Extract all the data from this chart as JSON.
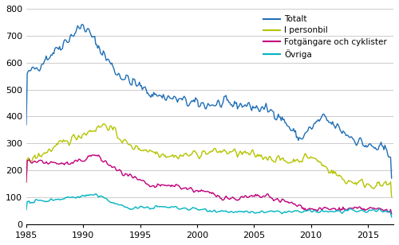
{
  "title": "",
  "xlabel": "",
  "ylabel": "",
  "xlim": [
    1985.0,
    2017.25
  ],
  "ylim": [
    0,
    800
  ],
  "yticks": [
    0,
    100,
    200,
    300,
    400,
    500,
    600,
    700,
    800
  ],
  "xticks": [
    1985,
    1990,
    1995,
    2000,
    2005,
    2010,
    2015
  ],
  "legend": [
    "Totalt",
    "I personbil",
    "Fotgängare och cyklister",
    "Övriga"
  ],
  "colors": [
    "#1f6eb5",
    "#b5c400",
    "#c0007a",
    "#00b5c0"
  ],
  "line_width": 1.0,
  "background_color": "#ffffff",
  "grid_color": "#cccccc"
}
